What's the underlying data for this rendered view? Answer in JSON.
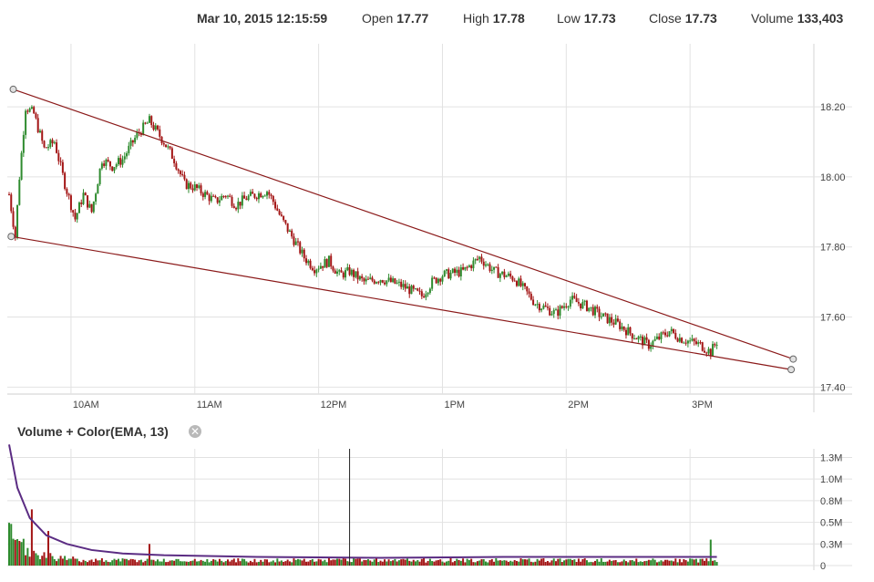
{
  "header": {
    "datetime": "Mar 10, 2015 12:15:59",
    "open_label": "Open",
    "open_value": "17.77",
    "high_label": "High",
    "high_value": "17.78",
    "low_label": "Low",
    "low_value": "17.73",
    "close_label": "Close",
    "close_value": "17.73",
    "volume_label": "Volume",
    "volume_value": "133,403"
  },
  "volume_panel": {
    "title": "Volume + Color(EMA, 13)",
    "close_glyph": "✕"
  },
  "colors": {
    "up": "#2e8b2e",
    "down": "#a31515",
    "trend": "#8b1a1a",
    "ema": "#5b2c83",
    "grid": "#e2e2e2"
  },
  "chart_data": [
    {
      "type": "candlestick",
      "x_axis": {
        "ticks": [
          "10AM",
          "11AM",
          "12PM",
          "1PM",
          "2PM",
          "3PM"
        ],
        "range": [
          "09:30",
          "16:00"
        ]
      },
      "y_axis": {
        "ticks": [
          "17.40",
          "17.60",
          "17.80",
          "18.00",
          "18.20"
        ],
        "ylim": [
          17.38,
          18.38
        ]
      },
      "grid": true,
      "trendlines": [
        {
          "name": "upper",
          "points": [
            [
              "09:32",
              18.25
            ],
            [
              "15:50",
              17.48
            ]
          ]
        },
        {
          "name": "lower",
          "points": [
            [
              "09:31",
              17.83
            ],
            [
              "15:49",
              17.45
            ]
          ]
        }
      ],
      "close_path": [
        [
          "09:30",
          17.95
        ],
        [
          "09:33",
          17.83
        ],
        [
          "09:35",
          18.0
        ],
        [
          "09:38",
          18.2
        ],
        [
          "09:42",
          18.18
        ],
        [
          "09:47",
          18.08
        ],
        [
          "09:52",
          18.1
        ],
        [
          "09:57",
          17.98
        ],
        [
          "10:02",
          17.88
        ],
        [
          "10:06",
          17.95
        ],
        [
          "10:10",
          17.9
        ],
        [
          "10:15",
          18.05
        ],
        [
          "10:20",
          18.03
        ],
        [
          "10:25",
          18.05
        ],
        [
          "10:32",
          18.12
        ],
        [
          "10:38",
          18.16
        ],
        [
          "10:45",
          18.1
        ],
        [
          "10:50",
          18.05
        ],
        [
          "10:55",
          17.98
        ],
        [
          "11:00",
          17.97
        ],
        [
          "11:05",
          17.95
        ],
        [
          "11:10",
          17.93
        ],
        [
          "11:15",
          17.95
        ],
        [
          "11:20",
          17.92
        ],
        [
          "11:25",
          17.94
        ],
        [
          "11:30",
          17.95
        ],
        [
          "11:35",
          17.96
        ],
        [
          "11:38",
          17.93
        ],
        [
          "11:42",
          17.88
        ],
        [
          "11:48",
          17.82
        ],
        [
          "11:53",
          17.77
        ],
        [
          "11:58",
          17.74
        ],
        [
          "12:05",
          17.76
        ],
        [
          "12:10",
          17.72
        ],
        [
          "12:15",
          17.73
        ],
        [
          "12:22",
          17.7
        ],
        [
          "12:30",
          17.71
        ],
        [
          "12:40",
          17.69
        ],
        [
          "12:50",
          17.66
        ],
        [
          "12:55",
          17.7
        ],
        [
          "13:00",
          17.72
        ],
        [
          "13:10",
          17.73
        ],
        [
          "13:18",
          17.77
        ],
        [
          "13:25",
          17.73
        ],
        [
          "13:35",
          17.71
        ],
        [
          "13:45",
          17.64
        ],
        [
          "13:55",
          17.61
        ],
        [
          "14:02",
          17.65
        ],
        [
          "14:10",
          17.63
        ],
        [
          "14:18",
          17.6
        ],
        [
          "14:25",
          17.58
        ],
        [
          "14:32",
          17.55
        ],
        [
          "14:40",
          17.52
        ],
        [
          "14:45",
          17.54
        ],
        [
          "14:50",
          17.56
        ],
        [
          "14:55",
          17.54
        ],
        [
          "15:00",
          17.53
        ],
        [
          "15:05",
          17.52
        ],
        [
          "15:10",
          17.5
        ],
        [
          "15:13",
          17.53
        ]
      ]
    },
    {
      "type": "bar",
      "name": "Volume + Color(EMA, 13)",
      "y_axis": {
        "ticks": [
          "0",
          "0.3M",
          "0.5M",
          "0.8M",
          "1.0M",
          "1.3M"
        ],
        "ylim": [
          0,
          1.35
        ]
      },
      "ema_path": [
        [
          "09:30",
          1.4
        ],
        [
          "09:34",
          0.9
        ],
        [
          "09:40",
          0.55
        ],
        [
          "09:48",
          0.35
        ],
        [
          "09:58",
          0.25
        ],
        [
          "10:10",
          0.18
        ],
        [
          "10:25",
          0.14
        ],
        [
          "10:45",
          0.12
        ],
        [
          "11:30",
          0.1
        ],
        [
          "12:30",
          0.09
        ],
        [
          "13:30",
          0.1
        ],
        [
          "14:30",
          0.1
        ],
        [
          "15:13",
          0.1
        ]
      ],
      "spikes": [
        [
          "09:41",
          0.65
        ],
        [
          "09:49",
          0.4
        ],
        [
          "10:38",
          0.25
        ],
        [
          "15:10",
          0.3
        ]
      ],
      "cursor_time": "12:15"
    }
  ]
}
